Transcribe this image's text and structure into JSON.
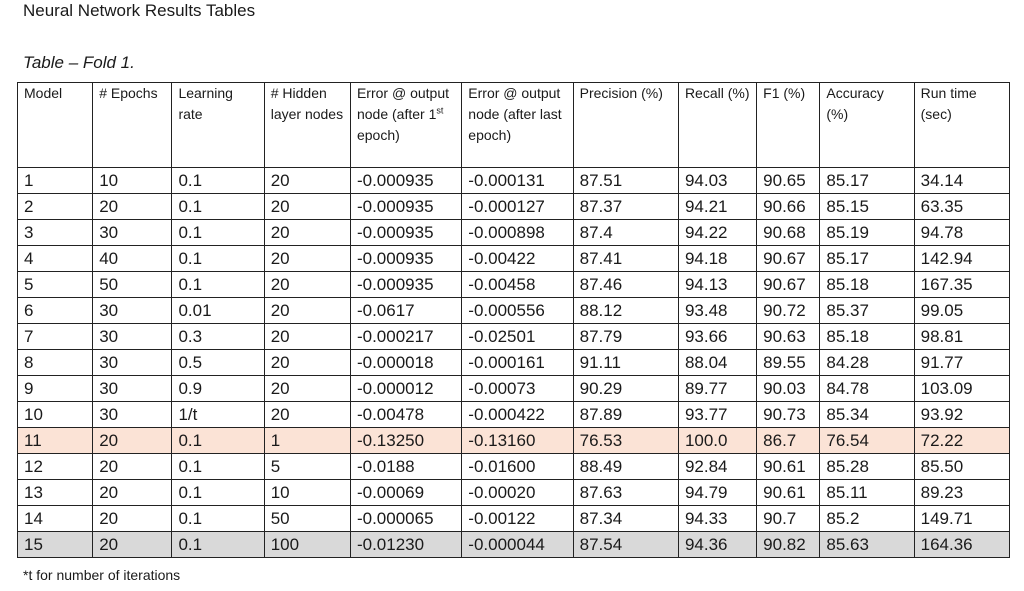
{
  "doc": {
    "title": "Neural Network Results Tables",
    "caption": "Table – Fold 1.",
    "footnote": "*t for number of iterations"
  },
  "table": {
    "headers": [
      "Model",
      "# Epochs",
      "Learning rate",
      "# Hidden layer nodes",
      {
        "pre": "Error @ output node (after 1",
        "sup": "st",
        "post": " epoch)"
      },
      "Error @ output node (after last epoch)",
      "Precision (%)",
      "Recall (%)",
      "F1 (%)",
      "Accuracy (%)",
      "Run time (sec)"
    ],
    "rows": [
      [
        "1",
        "10",
        "0.1",
        "20",
        "-0.000935",
        "-0.000131",
        "87.51",
        "94.03",
        "90.65",
        "85.17",
        "34.14"
      ],
      [
        "2",
        "20",
        "0.1",
        "20",
        "-0.000935",
        "-0.000127",
        "87.37",
        "94.21",
        "90.66",
        "85.15",
        "63.35"
      ],
      [
        "3",
        "30",
        "0.1",
        "20",
        "-0.000935",
        "-0.000898",
        "87.4",
        "94.22",
        "90.68",
        "85.19",
        "94.78"
      ],
      [
        "4",
        "40",
        "0.1",
        "20",
        "-0.000935",
        "-0.00422",
        "87.41",
        "94.18",
        "90.67",
        "85.17",
        "142.94"
      ],
      [
        "5",
        "50",
        "0.1",
        "20",
        "-0.000935",
        "-0.00458",
        "87.46",
        "94.13",
        "90.67",
        "85.18",
        "167.35"
      ],
      [
        "6",
        "30",
        "0.01",
        "20",
        "-0.0617",
        "-0.000556",
        "88.12",
        "93.48",
        "90.72",
        "85.37",
        "99.05"
      ],
      [
        "7",
        "30",
        "0.3",
        "20",
        "-0.000217",
        "-0.02501",
        "87.79",
        "93.66",
        "90.63",
        "85.18",
        "98.81"
      ],
      [
        "8",
        "30",
        "0.5",
        "20",
        "-0.000018",
        "-0.000161",
        "91.11",
        "88.04",
        "89.55",
        "84.28",
        "91.77"
      ],
      [
        "9",
        "30",
        "0.9",
        "20",
        "-0.000012",
        "-0.00073",
        "90.29",
        "89.77",
        "90.03",
        "84.78",
        "103.09"
      ],
      [
        "10",
        "30",
        "1/t",
        "20",
        "-0.00478",
        "-0.000422",
        "87.89",
        "93.77",
        "90.73",
        "85.34",
        "93.92"
      ],
      [
        "11",
        "20",
        "0.1",
        "1",
        "-0.13250",
        "-0.13160",
        "76.53",
        "100.0",
        "86.7",
        "76.54",
        "72.22"
      ],
      [
        "12",
        "20",
        "0.1",
        "5",
        "-0.0188",
        "-0.01600",
        "88.49",
        "92.84",
        "90.61",
        "85.28",
        "85.50"
      ],
      [
        "13",
        "20",
        "0.1",
        "10",
        "-0.00069",
        "-0.00020",
        "87.63",
        "94.79",
        "90.61",
        "85.11",
        "89.23"
      ],
      [
        "14",
        "20",
        "0.1",
        "50",
        "-0.000065",
        "-0.00122",
        "87.34",
        "94.33",
        "90.7",
        "85.2",
        "149.71"
      ],
      [
        "15",
        "20",
        "0.1",
        "100",
        "-0.01230",
        "-0.000044",
        "87.54",
        "94.36",
        "90.82",
        "85.63",
        "164.36"
      ]
    ],
    "highlight_rows": {
      "peach": 10,
      "grey": 14
    },
    "colors": {
      "peach": "#fbe3d6",
      "grey": "#d9d9d9",
      "border": "#222222"
    }
  }
}
